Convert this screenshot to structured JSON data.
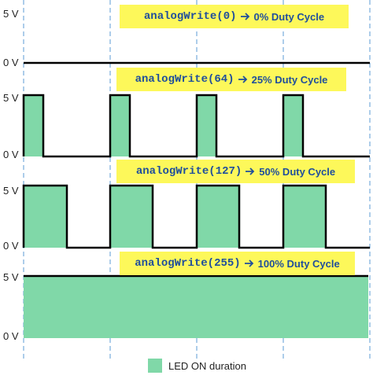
{
  "panels": [
    {
      "code": "analogWrite(0)",
      "caption": "0% Duty Cycle",
      "high_label": "5 V",
      "low_label": "0 V"
    },
    {
      "code": "analogWrite(64)",
      "caption": "25% Duty Cycle",
      "high_label": "5 V",
      "low_label": "0 V"
    },
    {
      "code": "analogWrite(127)",
      "caption": "50% Duty Cycle",
      "high_label": "5 V",
      "low_label": "0 V"
    },
    {
      "code": "analogWrite(255)",
      "caption": "100% Duty Cycle",
      "high_label": "5 V",
      "low_label": "0 V"
    }
  ],
  "legend": {
    "label": "LED ON duration"
  }
}
